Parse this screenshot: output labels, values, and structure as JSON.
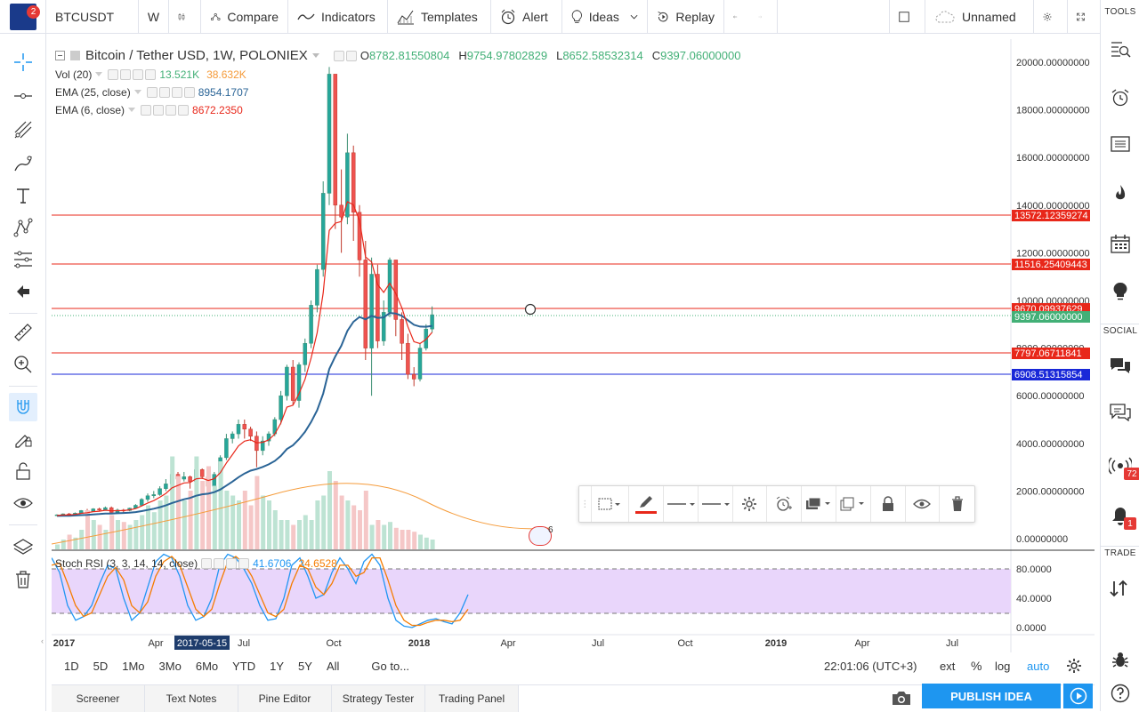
{
  "topbar": {
    "symbol": "BTCUSDT",
    "interval": "W",
    "compare": "Compare",
    "indicators": "Indicators",
    "templates": "Templates",
    "alert": "Alert",
    "ideas": "Ideas",
    "replay": "Replay",
    "layout_name": "Unnamed",
    "notif_badge": "2"
  },
  "legend": {
    "title": "Bitcoin / Tether USD, 1W, POLONIEX",
    "o_label": "O",
    "o": "8782.81550804",
    "h_label": "H",
    "h": "9754.97802829",
    "l_label": "L",
    "l": "8652.58532314",
    "c_label": "C",
    "c": "9397.06000000",
    "vol_label": "Vol (20)",
    "vol_1": "13.521K",
    "vol_2": "38.632K",
    "ema25_label": "EMA (25, close)",
    "ema25": "8954.1707",
    "ema6_label": "EMA (6, close)",
    "ema6": "8672.2350",
    "stoch_label": "Stoch RSI (3, 3, 14, 14, close)",
    "stoch_k": "41.6706",
    "stoch_d": "24.6528"
  },
  "price_axis": [
    "20000.00000000",
    "18000.00000000",
    "16000.00000000",
    "14000.00000000",
    "12000.00000000",
    "10000.00000000",
    "8000.00000000",
    "6000.00000000",
    "4000.00000000",
    "2000.00000000",
    "0.00000000"
  ],
  "price_tags": [
    {
      "label": "13572.12359274",
      "color": "#e8271a"
    },
    {
      "label": "11516.25409443",
      "color": "#e8271a"
    },
    {
      "label": "9670.09937629",
      "color": "#e8271a"
    },
    {
      "label": "9397.06000000",
      "color": "#43b077"
    },
    {
      "label": "7797.06711841",
      "color": "#e8271a"
    },
    {
      "label": "6908.51315854",
      "color": "#1928d8"
    }
  ],
  "rsi_axis": [
    "80.0000",
    "40.0000",
    "0.0000"
  ],
  "time_axis": [
    "2017",
    "Apr",
    "Jul",
    "Oct",
    "2018",
    "Apr",
    "Jul",
    "Oct",
    "2019",
    "Apr",
    "Jul"
  ],
  "time_highlight": "2017-05-15",
  "event_badge": "6",
  "ranges": [
    "1D",
    "5D",
    "1Mo",
    "3Mo",
    "6Mo",
    "YTD",
    "1Y",
    "5Y",
    "All"
  ],
  "goto": "Go to...",
  "clock": "22:01:06 (UTC+3)",
  "axis_opts": {
    "ext": "ext",
    "pct": "%",
    "log": "log",
    "auto": "auto"
  },
  "bottom_tabs": [
    "Screener",
    "Text Notes",
    "Pine Editor",
    "Strategy Tester",
    "Trading Panel"
  ],
  "publish": "PUBLISH IDEA",
  "rightbar": {
    "tools": "TOOLS",
    "social": "SOCIAL",
    "trade": "TRADE",
    "badge_72": "72",
    "badge_1": "1"
  },
  "colors": {
    "up": "#26a69a",
    "down": "#ef5350",
    "ema25": "#2a6496",
    "ema6": "#e8271a",
    "accent": "#1e96f0"
  }
}
